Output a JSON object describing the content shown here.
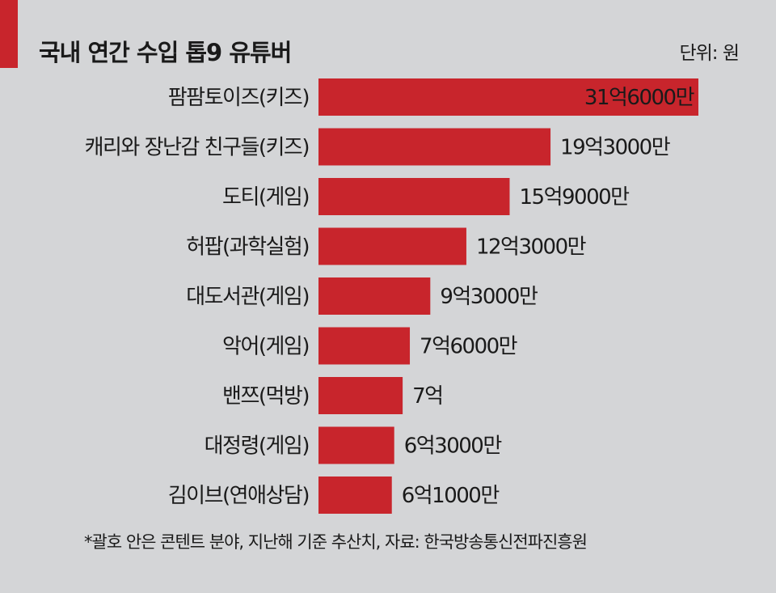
{
  "title": "국내 연간 수입 톱9 유튜버",
  "unit": "단위: 원",
  "note": "*괄호 안은 콘텐트 분야, 지난해 기준 추산치, 자료: 한국방송통신전파진흥원",
  "colors": {
    "accent": "#c8252c",
    "bar": "#c8252c",
    "background": "#d4d5d7"
  },
  "chart_data": {
    "type": "bar",
    "orientation": "horizontal",
    "title": "국내 연간 수입 톱9 유튜버",
    "unit": "단위: 원",
    "categories": [
      "팜팜토이즈(키즈)",
      "캐리와 장난감 친구들(키즈)",
      "도티(게임)",
      "허팝(과학실험)",
      "대도서관(게임)",
      "악어(게임)",
      "밴쯔(먹방)",
      "대정령(게임)",
      "김이브(연애상담)"
    ],
    "values": [
      3160000000,
      1930000000,
      1590000000,
      1230000000,
      930000000,
      760000000,
      700000000,
      630000000,
      610000000
    ],
    "value_labels": [
      "31억6000만",
      "19억3000만",
      "15억9000만",
      "12억3000만",
      "9억3000만",
      "7억6000만",
      "7억",
      "6억3000만",
      "6억1000만"
    ],
    "grid": false,
    "legend": "none"
  }
}
